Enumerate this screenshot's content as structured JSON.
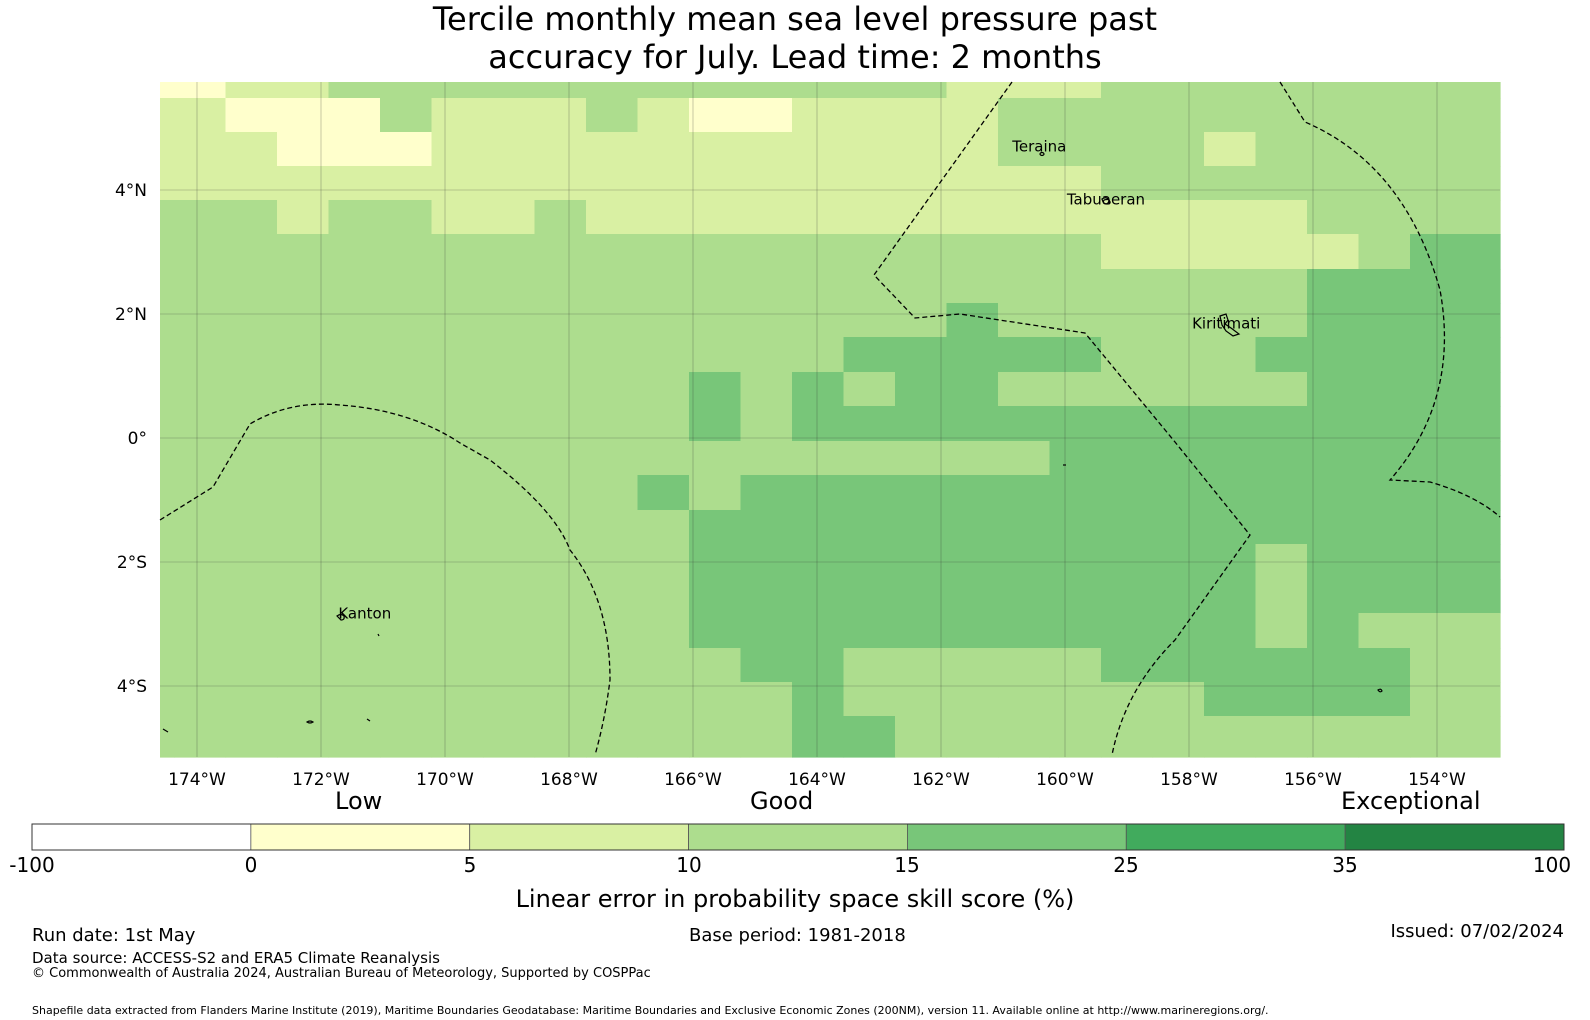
{
  "title": {
    "line1": "Tercile monthly mean sea level pressure past",
    "line2": "accuracy for July. Lead time: 2 months"
  },
  "map": {
    "lat_ticks": [
      "4°N",
      "2°N",
      "0°",
      "2°S",
      "4°S"
    ],
    "lon_ticks": [
      "174°W",
      "172°W",
      "170°W",
      "168°W",
      "166°W",
      "164°W",
      "162°W",
      "160°W",
      "158°W",
      "156°W",
      "154°W"
    ],
    "places": [
      {
        "name": "Teraina",
        "lon": -160.85,
        "lat": 4.7
      },
      {
        "name": "Tabuaeran",
        "lon": -159.97,
        "lat": 3.85
      },
      {
        "name": "Kiritimati",
        "lon": -157.95,
        "lat": 1.85
      },
      {
        "name": "Kanton",
        "lon": -171.72,
        "lat": -2.83
      }
    ],
    "colors": {
      "c0": "#ffffff",
      "c1": "#ffffcc",
      "c2": "#d9f0a3",
      "c3": "#addd8e",
      "c4": "#78c679",
      "c5": "#41ab5d",
      "c6": "#238443"
    }
  },
  "colorbar": {
    "categories": [
      "Low",
      "Good",
      "Exceptional"
    ],
    "ticks": [
      "-100",
      "0",
      "5",
      "10",
      "15",
      "25",
      "35",
      "100"
    ],
    "title": "Linear error in probability space skill score (%)"
  },
  "footer": {
    "run_date": "Run date: 1st May",
    "base_period": "Base period: 1981-2018",
    "issued": "Issued: 07/02/2024",
    "data_source": "Data source: ACCESS-S2 and ERA5 Climate Reanalysis",
    "copyright": "© Commonwealth of Australia 2024, Australian Bureau of Meteorology, Supported by COSPPac",
    "shapefile": "Shapefile data extracted from Flanders Marine Institute (2019), Maritime Boundaries Geodatabase: Maritime Boundaries and Exclusive Economic Zones (200NM), version 11. Available online at http://www.marineregions.org/."
  }
}
